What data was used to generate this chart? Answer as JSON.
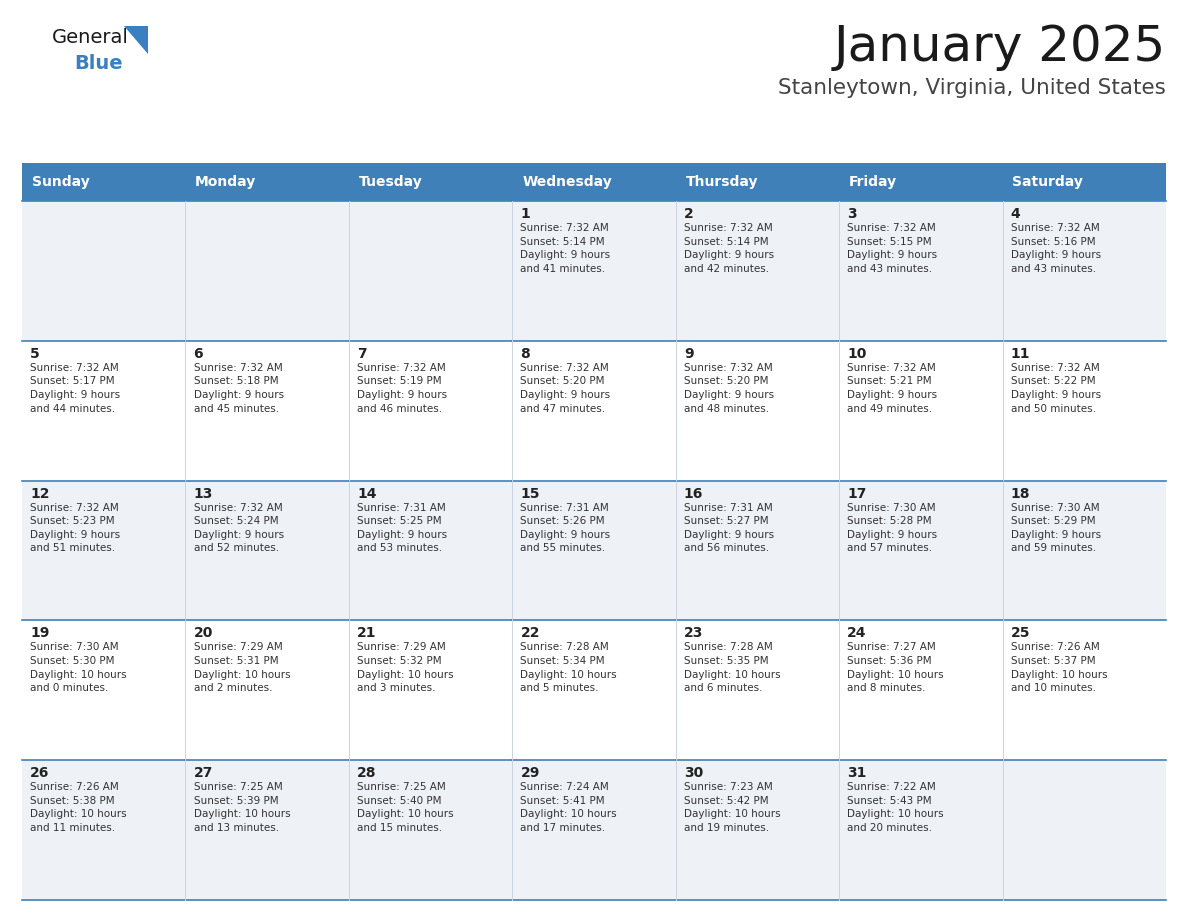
{
  "title": "January 2025",
  "subtitle": "Stanleytown, Virginia, United States",
  "days_of_week": [
    "Sunday",
    "Monday",
    "Tuesday",
    "Wednesday",
    "Thursday",
    "Friday",
    "Saturday"
  ],
  "header_bg_color": "#4080b8",
  "header_text_color": "#ffffff",
  "cell_bg_even": "#eef2f7",
  "cell_bg_odd": "#ffffff",
  "cell_border_top_color": "#4080b8",
  "cell_vert_line_color": "#c8d4e0",
  "day_number_color": "#222222",
  "cell_text_color": "#333333",
  "title_color": "#1a1a1a",
  "subtitle_color": "#444444",
  "logo_general_color": "#1a1a1a",
  "logo_blue_color": "#3a80c0",
  "logo_triangle_color": "#3a80c0",
  "calendar_data": [
    [
      {
        "day": null,
        "info": ""
      },
      {
        "day": null,
        "info": ""
      },
      {
        "day": null,
        "info": ""
      },
      {
        "day": 1,
        "info": "Sunrise: 7:32 AM\nSunset: 5:14 PM\nDaylight: 9 hours\nand 41 minutes."
      },
      {
        "day": 2,
        "info": "Sunrise: 7:32 AM\nSunset: 5:14 PM\nDaylight: 9 hours\nand 42 minutes."
      },
      {
        "day": 3,
        "info": "Sunrise: 7:32 AM\nSunset: 5:15 PM\nDaylight: 9 hours\nand 43 minutes."
      },
      {
        "day": 4,
        "info": "Sunrise: 7:32 AM\nSunset: 5:16 PM\nDaylight: 9 hours\nand 43 minutes."
      }
    ],
    [
      {
        "day": 5,
        "info": "Sunrise: 7:32 AM\nSunset: 5:17 PM\nDaylight: 9 hours\nand 44 minutes."
      },
      {
        "day": 6,
        "info": "Sunrise: 7:32 AM\nSunset: 5:18 PM\nDaylight: 9 hours\nand 45 minutes."
      },
      {
        "day": 7,
        "info": "Sunrise: 7:32 AM\nSunset: 5:19 PM\nDaylight: 9 hours\nand 46 minutes."
      },
      {
        "day": 8,
        "info": "Sunrise: 7:32 AM\nSunset: 5:20 PM\nDaylight: 9 hours\nand 47 minutes."
      },
      {
        "day": 9,
        "info": "Sunrise: 7:32 AM\nSunset: 5:20 PM\nDaylight: 9 hours\nand 48 minutes."
      },
      {
        "day": 10,
        "info": "Sunrise: 7:32 AM\nSunset: 5:21 PM\nDaylight: 9 hours\nand 49 minutes."
      },
      {
        "day": 11,
        "info": "Sunrise: 7:32 AM\nSunset: 5:22 PM\nDaylight: 9 hours\nand 50 minutes."
      }
    ],
    [
      {
        "day": 12,
        "info": "Sunrise: 7:32 AM\nSunset: 5:23 PM\nDaylight: 9 hours\nand 51 minutes."
      },
      {
        "day": 13,
        "info": "Sunrise: 7:32 AM\nSunset: 5:24 PM\nDaylight: 9 hours\nand 52 minutes."
      },
      {
        "day": 14,
        "info": "Sunrise: 7:31 AM\nSunset: 5:25 PM\nDaylight: 9 hours\nand 53 minutes."
      },
      {
        "day": 15,
        "info": "Sunrise: 7:31 AM\nSunset: 5:26 PM\nDaylight: 9 hours\nand 55 minutes."
      },
      {
        "day": 16,
        "info": "Sunrise: 7:31 AM\nSunset: 5:27 PM\nDaylight: 9 hours\nand 56 minutes."
      },
      {
        "day": 17,
        "info": "Sunrise: 7:30 AM\nSunset: 5:28 PM\nDaylight: 9 hours\nand 57 minutes."
      },
      {
        "day": 18,
        "info": "Sunrise: 7:30 AM\nSunset: 5:29 PM\nDaylight: 9 hours\nand 59 minutes."
      }
    ],
    [
      {
        "day": 19,
        "info": "Sunrise: 7:30 AM\nSunset: 5:30 PM\nDaylight: 10 hours\nand 0 minutes."
      },
      {
        "day": 20,
        "info": "Sunrise: 7:29 AM\nSunset: 5:31 PM\nDaylight: 10 hours\nand 2 minutes."
      },
      {
        "day": 21,
        "info": "Sunrise: 7:29 AM\nSunset: 5:32 PM\nDaylight: 10 hours\nand 3 minutes."
      },
      {
        "day": 22,
        "info": "Sunrise: 7:28 AM\nSunset: 5:34 PM\nDaylight: 10 hours\nand 5 minutes."
      },
      {
        "day": 23,
        "info": "Sunrise: 7:28 AM\nSunset: 5:35 PM\nDaylight: 10 hours\nand 6 minutes."
      },
      {
        "day": 24,
        "info": "Sunrise: 7:27 AM\nSunset: 5:36 PM\nDaylight: 10 hours\nand 8 minutes."
      },
      {
        "day": 25,
        "info": "Sunrise: 7:26 AM\nSunset: 5:37 PM\nDaylight: 10 hours\nand 10 minutes."
      }
    ],
    [
      {
        "day": 26,
        "info": "Sunrise: 7:26 AM\nSunset: 5:38 PM\nDaylight: 10 hours\nand 11 minutes."
      },
      {
        "day": 27,
        "info": "Sunrise: 7:25 AM\nSunset: 5:39 PM\nDaylight: 10 hours\nand 13 minutes."
      },
      {
        "day": 28,
        "info": "Sunrise: 7:25 AM\nSunset: 5:40 PM\nDaylight: 10 hours\nand 15 minutes."
      },
      {
        "day": 29,
        "info": "Sunrise: 7:24 AM\nSunset: 5:41 PM\nDaylight: 10 hours\nand 17 minutes."
      },
      {
        "day": 30,
        "info": "Sunrise: 7:23 AM\nSunset: 5:42 PM\nDaylight: 10 hours\nand 19 minutes."
      },
      {
        "day": 31,
        "info": "Sunrise: 7:22 AM\nSunset: 5:43 PM\nDaylight: 10 hours\nand 20 minutes."
      },
      {
        "day": null,
        "info": ""
      }
    ]
  ]
}
